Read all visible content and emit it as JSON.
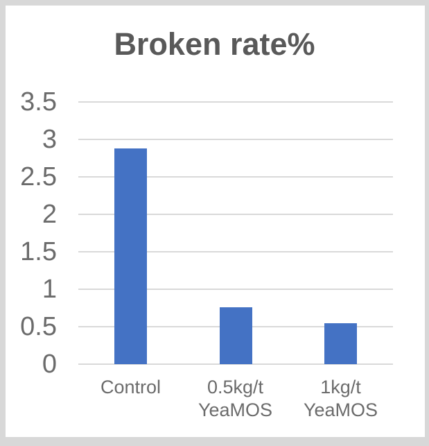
{
  "chart_data": {
    "type": "bar",
    "title": "Broken rate%",
    "categories": [
      "Control",
      "0.5kg/t YeaMOS",
      "1kg/t YeaMOS"
    ],
    "values": [
      2.88,
      0.76,
      0.55
    ],
    "xlabel": "",
    "ylabel": "",
    "ylim": [
      0,
      3.5
    ],
    "yticks": [
      0,
      0.5,
      1,
      1.5,
      2,
      2.5,
      3,
      3.5
    ],
    "grid": true,
    "legend": false,
    "colors": {
      "bar": "#4472c4",
      "gridline": "#d9d9d9",
      "title_text": "#595959",
      "axis_text": "#6b6b6b",
      "frame_background": "#d8d8d8",
      "plot_background": "#ffffff"
    }
  }
}
